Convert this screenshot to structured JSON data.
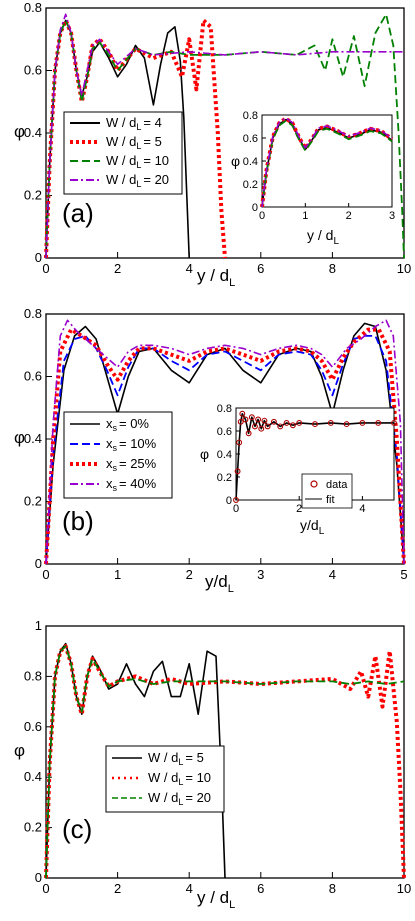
{
  "colors": {
    "black": "#000000",
    "red": "#ff0000",
    "blue": "#0000ff",
    "green": "#008000",
    "purple": "#9900cc",
    "darkred": "#b00000"
  },
  "chart_data": [
    {
      "panel": "(a)",
      "type": "line",
      "xlabel": "y / d_L",
      "ylabel": "φ",
      "xlim": [
        0,
        10
      ],
      "ylim": [
        0,
        0.8
      ],
      "xticks": [
        0,
        2,
        4,
        6,
        8,
        10
      ],
      "yticks": [
        0,
        0.2,
        0.4,
        0.6,
        0.8
      ],
      "legend_placement": "center-left",
      "series": [
        {
          "name": "W / d_L = 4",
          "color": "#000000",
          "dash": "solid",
          "x": [
            0,
            0.1,
            0.25,
            0.4,
            0.55,
            0.7,
            0.85,
            1.0,
            1.15,
            1.3,
            1.5,
            1.75,
            2.0,
            2.25,
            2.5,
            2.75,
            3.0,
            3.2,
            3.4,
            3.6,
            3.75,
            3.85,
            3.95,
            4.0
          ],
          "y": [
            0,
            0.3,
            0.6,
            0.72,
            0.76,
            0.72,
            0.6,
            0.52,
            0.58,
            0.66,
            0.69,
            0.64,
            0.58,
            0.62,
            0.68,
            0.64,
            0.49,
            0.62,
            0.72,
            0.74,
            0.63,
            0.45,
            0.15,
            0
          ]
        },
        {
          "name": "W / d_L = 5",
          "color": "#ff0000",
          "dash": "dotted",
          "x": [
            0,
            0.1,
            0.25,
            0.4,
            0.55,
            0.7,
            0.85,
            1.0,
            1.15,
            1.3,
            1.5,
            1.75,
            2.0,
            2.5,
            3.0,
            3.5,
            3.8,
            4.0,
            4.2,
            4.4,
            4.6,
            4.8,
            4.9,
            5.0
          ],
          "y": [
            0,
            0.3,
            0.6,
            0.72,
            0.76,
            0.72,
            0.6,
            0.5,
            0.58,
            0.68,
            0.7,
            0.66,
            0.6,
            0.67,
            0.64,
            0.66,
            0.58,
            0.7,
            0.54,
            0.76,
            0.74,
            0.4,
            0.15,
            0
          ]
        },
        {
          "name": "W / d_L = 10",
          "color": "#008000",
          "dash": "dashed",
          "x": [
            0,
            0.1,
            0.25,
            0.4,
            0.55,
            0.7,
            0.85,
            1.0,
            1.15,
            1.3,
            1.5,
            1.75,
            2.0,
            2.5,
            3.0,
            3.5,
            4.0,
            5.0,
            6.0,
            7.0,
            7.5,
            7.8,
            8.0,
            8.3,
            8.6,
            8.9,
            9.2,
            9.5,
            9.7,
            9.85,
            9.95,
            10.0
          ],
          "y": [
            0,
            0.3,
            0.6,
            0.72,
            0.76,
            0.72,
            0.6,
            0.5,
            0.58,
            0.67,
            0.69,
            0.65,
            0.6,
            0.67,
            0.65,
            0.66,
            0.65,
            0.65,
            0.66,
            0.65,
            0.68,
            0.6,
            0.7,
            0.58,
            0.71,
            0.55,
            0.72,
            0.78,
            0.68,
            0.4,
            0.15,
            0
          ]
        },
        {
          "name": "W / d_L = 20",
          "color": "#9900cc",
          "dash": "dashdot",
          "x": [
            0,
            0.1,
            0.25,
            0.4,
            0.55,
            0.7,
            0.85,
            1.0,
            1.15,
            1.3,
            1.5,
            1.75,
            2.0,
            2.5,
            3.0,
            4.0,
            5.0,
            6.0,
            7.0,
            8.0,
            9.0,
            10.0
          ],
          "y": [
            0,
            0.3,
            0.6,
            0.73,
            0.78,
            0.72,
            0.6,
            0.52,
            0.6,
            0.68,
            0.7,
            0.66,
            0.62,
            0.67,
            0.65,
            0.66,
            0.65,
            0.66,
            0.65,
            0.66,
            0.66,
            0.66
          ]
        }
      ],
      "inset": {
        "xlabel": "y / d_L",
        "ylabel": "φ",
        "xlim": [
          0,
          3
        ],
        "ylim": [
          0,
          0.8
        ],
        "xticks": [
          0,
          1,
          2,
          3
        ],
        "yticks": [
          0,
          0.2,
          0.4,
          0.6,
          0.8
        ],
        "x": [
          0,
          0.1,
          0.25,
          0.4,
          0.55,
          0.7,
          0.85,
          1.0,
          1.15,
          1.3,
          1.5,
          1.75,
          2.0,
          2.25,
          2.5,
          2.75,
          3.0
        ],
        "y": [
          0,
          0.3,
          0.6,
          0.72,
          0.76,
          0.72,
          0.6,
          0.5,
          0.58,
          0.67,
          0.69,
          0.65,
          0.6,
          0.63,
          0.67,
          0.65,
          0.58
        ]
      }
    },
    {
      "panel": "(b)",
      "type": "line",
      "xlabel": "y/d_L",
      "ylabel": "φ",
      "xlim": [
        0,
        5
      ],
      "ylim": [
        0,
        0.8
      ],
      "xticks": [
        0,
        1,
        2,
        3,
        4,
        5
      ],
      "yticks": [
        0,
        0.2,
        0.4,
        0.6,
        0.8
      ],
      "legend_placement": "lower-left",
      "series": [
        {
          "name": "x_s = 0%",
          "color": "#000000",
          "dash": "solid",
          "x": [
            0,
            0.1,
            0.25,
            0.4,
            0.55,
            0.7,
            0.85,
            1.0,
            1.15,
            1.3,
            1.5,
            1.75,
            2.0,
            2.25,
            2.5,
            2.75,
            3.0,
            3.25,
            3.5,
            3.7,
            3.85,
            4.0,
            4.15,
            4.3,
            4.45,
            4.6,
            4.75,
            4.9,
            5.0
          ],
          "y": [
            0,
            0.32,
            0.62,
            0.73,
            0.76,
            0.72,
            0.6,
            0.48,
            0.6,
            0.68,
            0.69,
            0.62,
            0.58,
            0.67,
            0.69,
            0.62,
            0.58,
            0.67,
            0.69,
            0.68,
            0.6,
            0.48,
            0.62,
            0.73,
            0.77,
            0.76,
            0.62,
            0.32,
            0
          ]
        },
        {
          "name": "x_s = 10%",
          "color": "#0000ff",
          "dash": "dashed",
          "x": [
            0,
            0.1,
            0.25,
            0.4,
            0.55,
            0.7,
            0.85,
            1.0,
            1.15,
            1.3,
            1.5,
            1.75,
            2.0,
            2.25,
            2.5,
            2.75,
            3.0,
            3.25,
            3.5,
            3.7,
            3.85,
            4.0,
            4.15,
            4.3,
            4.45,
            4.6,
            4.75,
            4.9,
            5.0
          ],
          "y": [
            0,
            0.35,
            0.65,
            0.72,
            0.73,
            0.69,
            0.62,
            0.54,
            0.63,
            0.69,
            0.69,
            0.65,
            0.62,
            0.67,
            0.68,
            0.65,
            0.62,
            0.67,
            0.68,
            0.67,
            0.62,
            0.54,
            0.64,
            0.72,
            0.73,
            0.73,
            0.65,
            0.35,
            0
          ]
        },
        {
          "name": "x_s = 25%",
          "color": "#ff0000",
          "dash": "dotted",
          "x": [
            0,
            0.1,
            0.2,
            0.35,
            0.5,
            0.7,
            0.85,
            1.0,
            1.15,
            1.3,
            1.5,
            1.75,
            2.0,
            2.25,
            2.5,
            2.75,
            3.0,
            3.25,
            3.5,
            3.7,
            3.85,
            4.0,
            4.15,
            4.3,
            4.5,
            4.65,
            4.8,
            4.9,
            5.0
          ],
          "y": [
            0,
            0.4,
            0.68,
            0.75,
            0.73,
            0.7,
            0.64,
            0.59,
            0.65,
            0.69,
            0.69,
            0.67,
            0.65,
            0.68,
            0.69,
            0.67,
            0.65,
            0.68,
            0.69,
            0.68,
            0.65,
            0.59,
            0.66,
            0.71,
            0.75,
            0.75,
            0.68,
            0.4,
            0
          ]
        },
        {
          "name": "x_s = 40%",
          "color": "#9900cc",
          "dash": "dashdot",
          "x": [
            0,
            0.1,
            0.2,
            0.3,
            0.45,
            0.6,
            0.8,
            1.0,
            1.15,
            1.3,
            1.5,
            1.75,
            2.0,
            2.25,
            2.5,
            2.75,
            3.0,
            3.25,
            3.5,
            3.7,
            3.85,
            4.0,
            4.2,
            4.4,
            4.6,
            4.75,
            4.85,
            4.95,
            5.0
          ],
          "y": [
            0,
            0.45,
            0.73,
            0.78,
            0.74,
            0.71,
            0.67,
            0.63,
            0.68,
            0.7,
            0.7,
            0.69,
            0.67,
            0.69,
            0.7,
            0.69,
            0.67,
            0.69,
            0.7,
            0.69,
            0.67,
            0.63,
            0.69,
            0.72,
            0.76,
            0.78,
            0.73,
            0.45,
            0
          ]
        }
      ],
      "inset": {
        "xlabel": "y/d_L",
        "ylabel": "φ",
        "xlim": [
          0,
          5
        ],
        "ylim": [
          0,
          0.8
        ],
        "xticks": [
          0,
          2,
          4
        ],
        "yticks": [
          0,
          0.2,
          0.4,
          0.6,
          0.8
        ],
        "legend": [
          "data",
          "fit"
        ],
        "x": [
          0,
          0.05,
          0.1,
          0.15,
          0.2,
          0.3,
          0.4,
          0.5,
          0.6,
          0.7,
          0.8,
          0.9,
          1.0,
          1.2,
          1.4,
          1.6,
          1.8,
          2.0,
          2.5,
          3.0,
          3.5,
          4.0,
          4.5,
          5.0
        ],
        "y": [
          0,
          0.25,
          0.5,
          0.68,
          0.75,
          0.7,
          0.58,
          0.72,
          0.64,
          0.7,
          0.62,
          0.69,
          0.64,
          0.68,
          0.64,
          0.67,
          0.65,
          0.67,
          0.66,
          0.67,
          0.66,
          0.67,
          0.67,
          0.67
        ]
      }
    },
    {
      "panel": "(c)",
      "type": "line",
      "xlabel": "y / d_L",
      "ylabel": "φ",
      "xlim": [
        0,
        10
      ],
      "ylim": [
        0,
        1
      ],
      "xticks": [
        0,
        2,
        4,
        6,
        8,
        10
      ],
      "yticks": [
        0,
        0.2,
        0.4,
        0.6,
        0.8,
        1
      ],
      "legend_placement": "center-left",
      "series": [
        {
          "name": "W / d_L = 5",
          "color": "#000000",
          "dash": "solid",
          "x": [
            0,
            0.1,
            0.25,
            0.4,
            0.55,
            0.7,
            0.85,
            1.0,
            1.15,
            1.3,
            1.5,
            1.75,
            2.0,
            2.25,
            2.5,
            2.75,
            3.0,
            3.25,
            3.5,
            3.75,
            4.0,
            4.25,
            4.5,
            4.75,
            4.9,
            5.0
          ],
          "y": [
            0,
            0.45,
            0.8,
            0.9,
            0.93,
            0.85,
            0.72,
            0.65,
            0.8,
            0.88,
            0.83,
            0.75,
            0.77,
            0.85,
            0.77,
            0.72,
            0.82,
            0.86,
            0.72,
            0.72,
            0.85,
            0.65,
            0.9,
            0.88,
            0.4,
            0
          ]
        },
        {
          "name": "W / d_L = 10",
          "color": "#ff0000",
          "dash": "dotted",
          "x": [
            0,
            0.1,
            0.25,
            0.4,
            0.55,
            0.7,
            0.85,
            1.0,
            1.15,
            1.3,
            1.5,
            1.75,
            2.0,
            2.5,
            3.0,
            3.5,
            4.0,
            5.0,
            6.0,
            7.0,
            8.0,
            8.5,
            8.8,
            9.0,
            9.2,
            9.4,
            9.6,
            9.8,
            9.9,
            10.0
          ],
          "y": [
            0,
            0.45,
            0.8,
            0.9,
            0.92,
            0.85,
            0.72,
            0.65,
            0.8,
            0.87,
            0.82,
            0.76,
            0.78,
            0.8,
            0.77,
            0.79,
            0.77,
            0.78,
            0.77,
            0.78,
            0.79,
            0.75,
            0.82,
            0.72,
            0.88,
            0.68,
            0.9,
            0.62,
            0.35,
            0
          ]
        },
        {
          "name": "W / d_L = 20",
          "color": "#008000",
          "dash": "dashed",
          "x": [
            0,
            0.1,
            0.25,
            0.4,
            0.55,
            0.7,
            0.85,
            1.0,
            1.15,
            1.3,
            1.5,
            1.75,
            2.0,
            2.5,
            3.0,
            3.5,
            4.0,
            5.0,
            6.0,
            7.0,
            8.0,
            8.5,
            9.0,
            9.5,
            10.0
          ],
          "y": [
            0,
            0.45,
            0.8,
            0.9,
            0.92,
            0.85,
            0.72,
            0.66,
            0.8,
            0.87,
            0.82,
            0.76,
            0.78,
            0.79,
            0.77,
            0.78,
            0.78,
            0.78,
            0.77,
            0.78,
            0.78,
            0.77,
            0.78,
            0.77,
            0.78
          ]
        }
      ]
    }
  ],
  "labels": {
    "panel_a": "(a)",
    "panel_b": "(b)",
    "panel_c": "(c)",
    "ylabel": "φ",
    "xlabel_main": "y / d",
    "xlabel_b": "y/d",
    "sub_L": "L",
    "sub_s": "s",
    "legend_a": [
      "W / d",
      "= 4",
      "= 5",
      "= 10",
      "= 20"
    ],
    "legend_b": [
      "x",
      "= 0%",
      "= 10%",
      "= 25%",
      "= 40%"
    ],
    "legend_c": [
      "W / d",
      "= 5",
      "= 10",
      "= 20"
    ],
    "inset_b_legend": [
      "data",
      "fit"
    ]
  }
}
